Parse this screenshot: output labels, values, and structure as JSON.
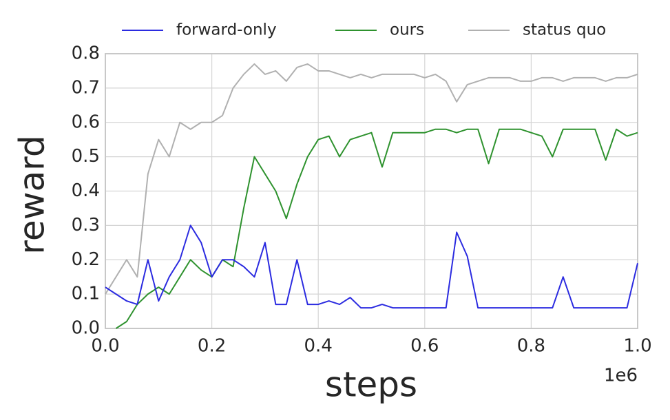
{
  "chart_data": {
    "type": "line",
    "xlabel": "steps",
    "ylabel": "reward",
    "x_offset_label": "1e6",
    "xlim": [
      0,
      1000000
    ],
    "ylim": [
      0,
      0.8
    ],
    "xticks": [
      {
        "value": 0,
        "label": "0.0"
      },
      {
        "value": 200000,
        "label": "0.2"
      },
      {
        "value": 400000,
        "label": "0.4"
      },
      {
        "value": 600000,
        "label": "0.6"
      },
      {
        "value": 800000,
        "label": "0.8"
      },
      {
        "value": 1000000,
        "label": "1.0"
      }
    ],
    "yticks": [
      {
        "value": 0,
        "label": "0.0"
      },
      0.1,
      0.2,
      0.3,
      0.4,
      0.5,
      0.6,
      0.7,
      0.8
    ],
    "grid": true,
    "legend": "top",
    "x": [
      0,
      20000,
      40000,
      60000,
      80000,
      100000,
      120000,
      140000,
      160000,
      180000,
      200000,
      220000,
      240000,
      260000,
      280000,
      300000,
      320000,
      340000,
      360000,
      380000,
      400000,
      420000,
      440000,
      460000,
      480000,
      500000,
      520000,
      540000,
      560000,
      580000,
      600000,
      620000,
      640000,
      660000,
      680000,
      700000,
      720000,
      740000,
      760000,
      780000,
      800000,
      820000,
      840000,
      860000,
      880000,
      900000,
      920000,
      940000,
      960000,
      980000,
      1000000
    ],
    "series": [
      {
        "name": "forward-only",
        "color": "#2b2be0",
        "values": [
          0.12,
          0.1,
          0.08,
          0.07,
          0.2,
          0.08,
          0.15,
          0.2,
          0.3,
          0.25,
          0.15,
          0.2,
          0.2,
          0.18,
          0.15,
          0.25,
          0.07,
          0.07,
          0.2,
          0.07,
          0.07,
          0.08,
          0.07,
          0.09,
          0.06,
          0.06,
          0.07,
          0.06,
          0.06,
          0.06,
          0.06,
          0.06,
          0.06,
          0.28,
          0.21,
          0.06,
          0.06,
          0.06,
          0.06,
          0.06,
          0.06,
          0.06,
          0.06,
          0.15,
          0.06,
          0.06,
          0.06,
          0.06,
          0.06,
          0.06,
          0.19
        ]
      },
      {
        "name": "ours",
        "color": "#2e922e",
        "values": [
          null,
          0.0,
          0.02,
          0.07,
          0.1,
          0.12,
          0.1,
          0.15,
          0.2,
          0.17,
          0.15,
          0.2,
          0.18,
          0.35,
          0.5,
          0.45,
          0.4,
          0.32,
          0.42,
          0.5,
          0.55,
          0.56,
          0.5,
          0.55,
          0.56,
          0.57,
          0.47,
          0.57,
          0.57,
          0.57,
          0.57,
          0.58,
          0.58,
          0.57,
          0.58,
          0.58,
          0.48,
          0.58,
          0.58,
          0.58,
          0.57,
          0.56,
          0.5,
          0.58,
          0.58,
          0.58,
          0.58,
          0.49,
          0.58,
          0.56,
          0.57
        ]
      },
      {
        "name": "status quo",
        "color": "#b0b0b0",
        "values": [
          0.1,
          0.15,
          0.2,
          0.15,
          0.45,
          0.55,
          0.5,
          0.6,
          0.58,
          0.6,
          0.6,
          0.62,
          0.7,
          0.74,
          0.77,
          0.74,
          0.75,
          0.72,
          0.76,
          0.77,
          0.75,
          0.75,
          0.74,
          0.73,
          0.74,
          0.73,
          0.74,
          0.74,
          0.74,
          0.74,
          0.73,
          0.74,
          0.72,
          0.66,
          0.71,
          0.72,
          0.73,
          0.73,
          0.73,
          0.72,
          0.72,
          0.73,
          0.73,
          0.72,
          0.73,
          0.73,
          0.73,
          0.72,
          0.73,
          0.73,
          0.74
        ]
      }
    ]
  }
}
